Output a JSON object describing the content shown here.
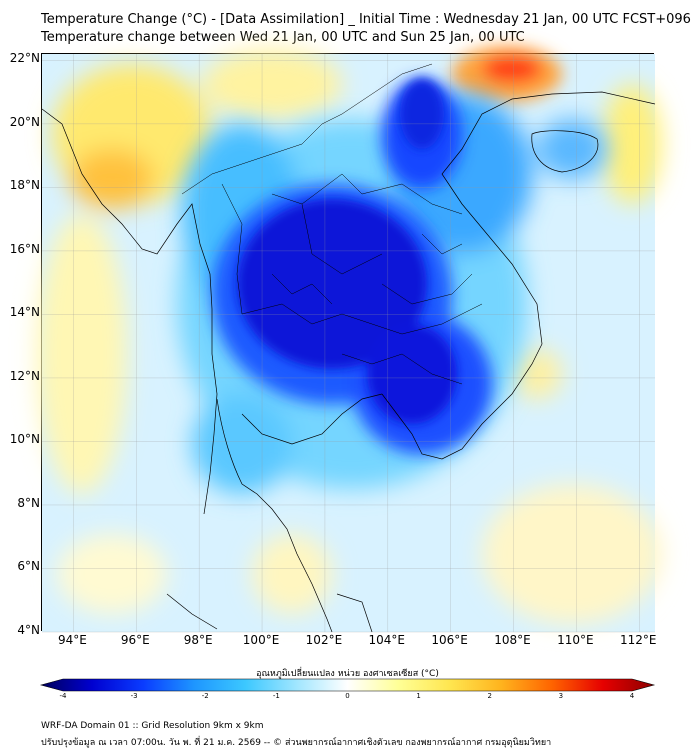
{
  "title_line1": "Temperature Change (°C) - [Data Assimilation] _ Initial Time : Wednesday 21 Jan, 00 UTC FCST+096",
  "title_line2": "Temperature change between Wed 21 Jan, 00 UTC and Sun 25 Jan, 00 UTC",
  "map": {
    "lon_range": [
      93,
      112.5
    ],
    "lat_range": [
      4,
      22.2
    ],
    "lat_ticks": [
      "22°N",
      "20°N",
      "18°N",
      "16°N",
      "14°N",
      "12°N",
      "10°N",
      "8°N",
      "6°N",
      "4°N"
    ],
    "lat_values": [
      22,
      20,
      18,
      16,
      14,
      12,
      10,
      8,
      6,
      4
    ],
    "lon_ticks": [
      "94°E",
      "96°E",
      "98°E",
      "100°E",
      "102°E",
      "104°E",
      "106°E",
      "108°E",
      "110°E",
      "112°E"
    ],
    "lon_values": [
      94,
      96,
      98,
      100,
      102,
      104,
      106,
      108,
      110,
      112
    ],
    "background_color": "#d8f2ff"
  },
  "colorbar": {
    "label": "อุณหภูมิเปลี่ยนแปลง หน่วย องศาเซลเซียส (°C)",
    "ticks": [
      "-4",
      "-3",
      "-2",
      "-1",
      "0",
      "1",
      "2",
      "3",
      "4"
    ],
    "range": [
      -4,
      4
    ],
    "colors": [
      "#00005a",
      "#0000d0",
      "#0a3cff",
      "#1e96ff",
      "#3cc8ff",
      "#a0e6ff",
      "#ffffff",
      "#ffff96",
      "#ffe650",
      "#ffb41e",
      "#ff6400",
      "#e60000",
      "#8c0000"
    ]
  },
  "footer_line1": "WRF-DA Domain 01 :: Grid Resolution 9km x 9km",
  "footer_line2": "ปรับปรุงข้อมูล ณ เวลา 07:00น. วัน พ. ที่ 21 ม.ค. 2569 -- © ส่วนพยากรณ์อากาศเชิงตัวเลข กองพยากรณ์อากาศ กรมอุตุนิยมวิทยา"
}
